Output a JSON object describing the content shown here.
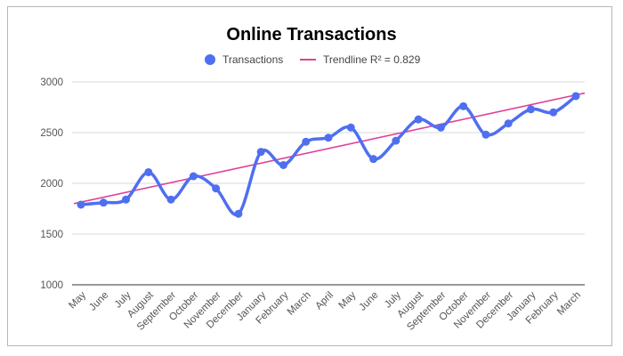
{
  "chart_data": {
    "type": "line",
    "title": "Online Transactions",
    "xlabel": "",
    "ylabel": "",
    "ylim": [
      1000,
      3000
    ],
    "yticks": [
      1000,
      1500,
      2000,
      2500,
      3000
    ],
    "grid": true,
    "legend_position": "top",
    "categories": [
      "May",
      "June",
      "July",
      "August",
      "September",
      "October",
      "November",
      "December",
      "January",
      "February",
      "March",
      "April",
      "May",
      "June",
      "July",
      "August",
      "September",
      "October",
      "November",
      "December",
      "January",
      "February",
      "March"
    ],
    "series": [
      {
        "name": "Transactions",
        "color": "#4f6ff0",
        "values": [
          1790,
          1810,
          1840,
          2110,
          1840,
          2070,
          1950,
          1700,
          2310,
          2180,
          2410,
          2450,
          2550,
          2240,
          2420,
          2630,
          2550,
          2760,
          2480,
          2590,
          2730,
          2700,
          2860
        ]
      }
    ],
    "trendline": {
      "label": "Trendline R² = 0.829",
      "color": "#e0409a",
      "start": 1800,
      "end": 2890
    }
  }
}
